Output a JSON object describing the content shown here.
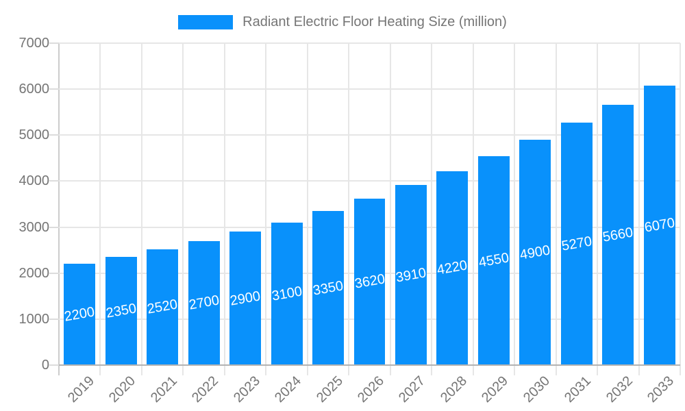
{
  "legend": {
    "label": "Radiant Electric Floor Heating Size (million)"
  },
  "chart_data": {
    "type": "bar",
    "title": "Radiant Electric Floor Heating Size (million)",
    "series_name": "Radiant Electric Floor Heating Size (million)",
    "categories": [
      "2019",
      "2020",
      "2021",
      "2022",
      "2023",
      "2024",
      "2025",
      "2026",
      "2027",
      "2028",
      "2029",
      "2030",
      "2031",
      "2032",
      "2033"
    ],
    "values": [
      2200,
      2350,
      2520,
      2700,
      2900,
      3100,
      3350,
      3620,
      3910,
      4220,
      4550,
      4900,
      5270,
      5660,
      6070
    ],
    "xlabel": "",
    "ylabel": "",
    "ylim": [
      0,
      7000
    ],
    "ytick_step": 1000,
    "yticks": [
      0,
      1000,
      2000,
      3000,
      4000,
      5000,
      6000,
      7000
    ],
    "grid": true,
    "legend_position": "top",
    "bar_label_position": "inside-middle",
    "colors": {
      "bar": "#0991fb",
      "bar_label": "#ffffff",
      "axis_text": "#757575",
      "grid": "#e6e6e6",
      "plot_left_border": "#cccccc",
      "axis_line": "#b3b3b3",
      "tick": "#dcdcdc"
    }
  }
}
